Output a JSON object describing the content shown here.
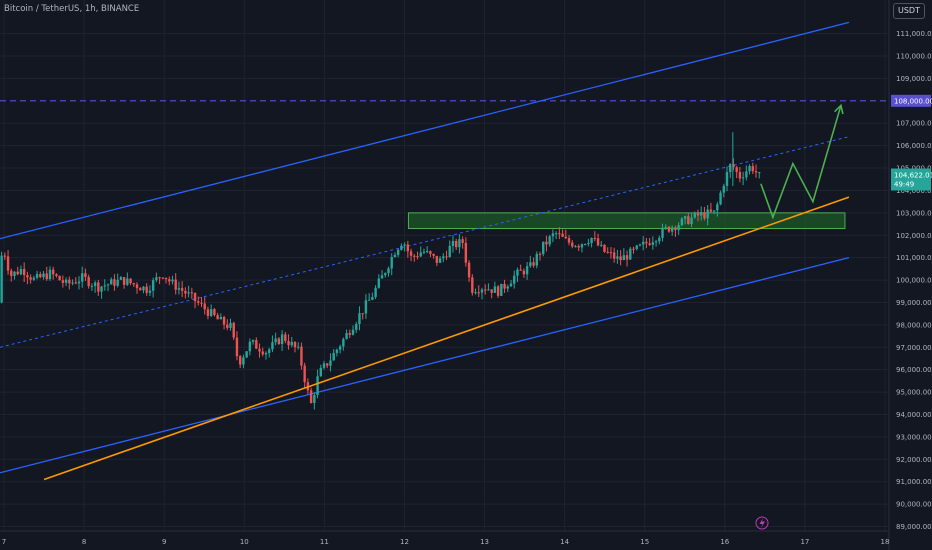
{
  "header": {
    "title": "Bitcoin / TetherUS, 1h, BINANCE",
    "currency": "USDT"
  },
  "colors": {
    "background": "#131722",
    "grid": "#1f2330",
    "up": "#26a69a",
    "down": "#ef5350",
    "channel": "#2962ff",
    "trendline": "#ff9800",
    "projection": "#4caf50",
    "target_line": "#5b4fd1",
    "zone_fill": "#1e5a2a",
    "zone_border": "#4caf50"
  },
  "chart_data": {
    "type": "candlestick",
    "symbol": "Bitcoin / TetherUS",
    "interval": "1h",
    "exchange": "BINANCE",
    "ylim": [
      88800,
      112500
    ],
    "xlim": [
      6.95,
      18.05
    ],
    "y_ticks": [
      "89,000.00",
      "90,000.00",
      "91,000.00",
      "92,000.00",
      "93,000.00",
      "94,000.00",
      "95,000.00",
      "96,000.00",
      "97,000.00",
      "98,000.00",
      "99,000.00",
      "100,000.00",
      "101,000.00",
      "102,000.00",
      "103,000.00",
      "104,000.00",
      "105,000.00",
      "106,000.00",
      "107,000.00",
      "109,000.00",
      "110,000.00",
      "111,000.00"
    ],
    "y_tick_values": [
      89000,
      90000,
      91000,
      92000,
      93000,
      94000,
      95000,
      96000,
      97000,
      98000,
      99000,
      100000,
      101000,
      102000,
      103000,
      104000,
      105000,
      106000,
      107000,
      109000,
      110000,
      111000
    ],
    "x_ticks": [
      "7",
      "8",
      "9",
      "10",
      "11",
      "12",
      "13",
      "14",
      "15",
      "16",
      "17",
      "18"
    ],
    "x_tick_values": [
      7,
      8,
      9,
      10,
      11,
      12,
      13,
      14,
      15,
      16,
      17,
      18
    ],
    "price_path": [
      [
        6.95,
        99000
      ],
      [
        7.0,
        101600
      ],
      [
        7.1,
        100200
      ],
      [
        7.25,
        100500
      ],
      [
        7.4,
        100000
      ],
      [
        7.6,
        100300
      ],
      [
        7.8,
        99800
      ],
      [
        8.0,
        100100
      ],
      [
        8.2,
        99700
      ],
      [
        8.5,
        100000
      ],
      [
        8.8,
        99600
      ],
      [
        9.0,
        100300
      ],
      [
        9.1,
        99900
      ],
      [
        9.3,
        99400
      ],
      [
        9.5,
        98800
      ],
      [
        9.7,
        98200
      ],
      [
        9.85,
        97900
      ],
      [
        9.95,
        96300
      ],
      [
        10.1,
        97200
      ],
      [
        10.3,
        96800
      ],
      [
        10.5,
        97500
      ],
      [
        10.7,
        96800
      ],
      [
        10.85,
        94400
      ],
      [
        10.95,
        95800
      ],
      [
        11.1,
        96500
      ],
      [
        11.25,
        97300
      ],
      [
        11.45,
        98400
      ],
      [
        11.6,
        99200
      ],
      [
        11.75,
        100200
      ],
      [
        11.9,
        101300
      ],
      [
        12.0,
        101800
      ],
      [
        12.1,
        101000
      ],
      [
        12.25,
        101300
      ],
      [
        12.45,
        100800
      ],
      [
        12.6,
        101500
      ],
      [
        12.75,
        101700
      ],
      [
        12.85,
        99600
      ],
      [
        13.0,
        99700
      ],
      [
        13.2,
        99500
      ],
      [
        13.4,
        100200
      ],
      [
        13.6,
        100600
      ],
      [
        13.75,
        101500
      ],
      [
        13.9,
        102100
      ],
      [
        14.05,
        101700
      ],
      [
        14.2,
        101600
      ],
      [
        14.35,
        101900
      ],
      [
        14.5,
        101300
      ],
      [
        14.7,
        100900
      ],
      [
        14.9,
        101300
      ],
      [
        15.1,
        101800
      ],
      [
        15.3,
        102300
      ],
      [
        15.5,
        102600
      ],
      [
        15.7,
        102900
      ],
      [
        15.9,
        103000
      ],
      [
        16.0,
        104300
      ],
      [
        16.1,
        105200
      ],
      [
        16.2,
        104600
      ],
      [
        16.35,
        105100
      ],
      [
        16.45,
        104622
      ]
    ],
    "last_price": "104,622.01",
    "countdown": "49:49",
    "target_price": "108,000.00",
    "target_value": 108000,
    "channel_upper": [
      [
        6.95,
        101850
      ],
      [
        17.55,
        111500
      ]
    ],
    "channel_lower": [
      [
        6.95,
        91400
      ],
      [
        17.55,
        101000
      ]
    ],
    "channel_mid": [
      [
        6.95,
        97000
      ],
      [
        17.55,
        106400
      ]
    ],
    "trendline": [
      [
        7.5,
        91100
      ],
      [
        17.55,
        103700
      ]
    ],
    "zone": {
      "x": [
        12.05,
        17.5
      ],
      "y": [
        102300,
        103000
      ]
    },
    "projection": [
      [
        16.45,
        104300
      ],
      [
        16.6,
        102800
      ],
      [
        16.85,
        105200
      ],
      [
        17.1,
        103500
      ],
      [
        17.45,
        107800
      ]
    ]
  }
}
